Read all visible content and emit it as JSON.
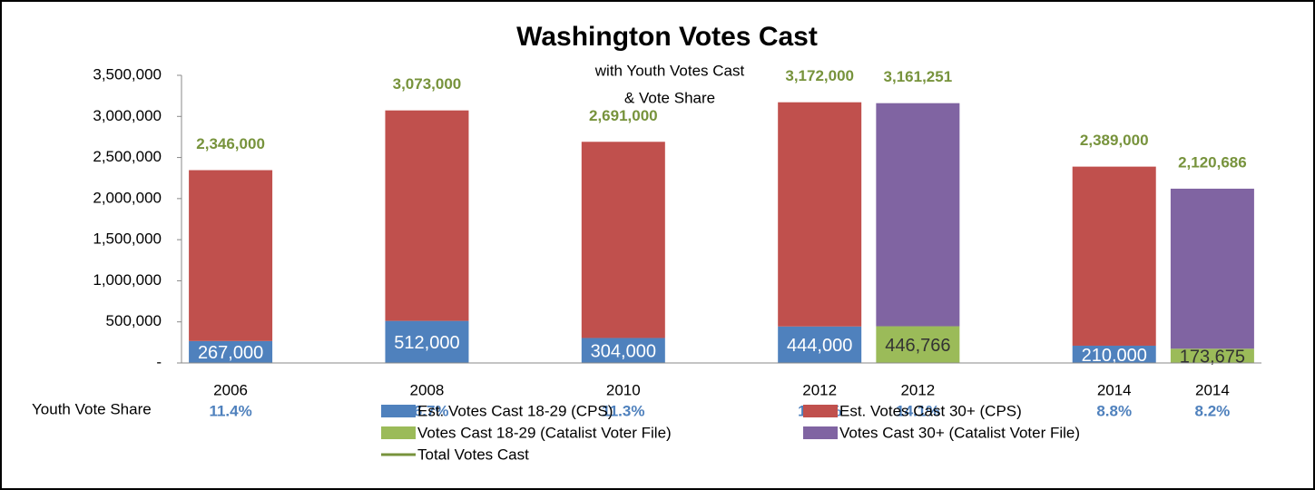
{
  "chart_data": {
    "type": "bar",
    "title": "Washington Votes Cast",
    "subtitle": [
      "with Youth Votes Cast",
      "& Vote Share"
    ],
    "categories": [
      "2006",
      null,
      "2008",
      null,
      "2010",
      null,
      "2012",
      "2012",
      null,
      "2014",
      "2014"
    ],
    "ylim": [
      0,
      3500000
    ],
    "yticks": [
      {
        "value": 0,
        "label": "-"
      },
      {
        "value": 500000,
        "label": "500,000"
      },
      {
        "value": 1000000,
        "label": "1,000,000"
      },
      {
        "value": 1500000,
        "label": "1,500,000"
      },
      {
        "value": 2000000,
        "label": "2,000,000"
      },
      {
        "value": 2500000,
        "label": "2,500,000"
      },
      {
        "value": 3000000,
        "label": "3,000,000"
      },
      {
        "value": 3500000,
        "label": "3,500,000"
      }
    ],
    "stacked": true,
    "series": [
      {
        "name": "Est. Votes Cast 18-29 (CPS)",
        "color": "#4f81bd",
        "values": [
          267000,
          null,
          512000,
          null,
          304000,
          null,
          444000,
          null,
          null,
          210000,
          null
        ],
        "value_labels": [
          "267,000",
          null,
          "512,000",
          null,
          "304,000",
          null,
          "444,000",
          null,
          null,
          "210,000",
          null
        ]
      },
      {
        "name": "Est. Votes Cast 30+ (CPS)",
        "color": "#c0504d",
        "values": [
          2079000,
          null,
          2561000,
          null,
          2387000,
          null,
          2728000,
          null,
          null,
          2179000,
          null
        ]
      },
      {
        "name": "Votes Cast 18-29 (Catalist Voter File)",
        "color": "#9bbb59",
        "values": [
          null,
          null,
          null,
          null,
          null,
          null,
          null,
          446766,
          null,
          null,
          173675
        ],
        "value_labels": [
          null,
          null,
          null,
          null,
          null,
          null,
          null,
          "446,766",
          null,
          null,
          "173,675"
        ]
      },
      {
        "name": "Votes Cast 30+ (Catalist Voter File)",
        "color": "#8064a2",
        "values": [
          null,
          null,
          null,
          null,
          null,
          null,
          null,
          2714485,
          null,
          null,
          1947011
        ]
      },
      {
        "name": "Total Votes Cast",
        "type": "line",
        "color": "#77933c",
        "values": [
          2346000,
          null,
          3073000,
          null,
          2691000,
          null,
          3172000,
          3161251,
          null,
          2389000,
          2120686
        ],
        "value_labels": [
          "2,346,000",
          null,
          "3,073,000",
          null,
          "2,691,000",
          null,
          "3,172,000",
          "3,161,251",
          null,
          "2,389,000",
          "2,120,686"
        ]
      }
    ],
    "youth_vote_share": {
      "label": "Youth Vote Share",
      "values": [
        11.4,
        null,
        16.7,
        null,
        11.3,
        null,
        14.0,
        14.1,
        null,
        8.8,
        8.2
      ],
      "value_labels": [
        "11.4%",
        null,
        "16.7%",
        null,
        "11.3%",
        null,
        "14.0%",
        "14.1%",
        null,
        "8.8%",
        "8.2%"
      ]
    }
  }
}
